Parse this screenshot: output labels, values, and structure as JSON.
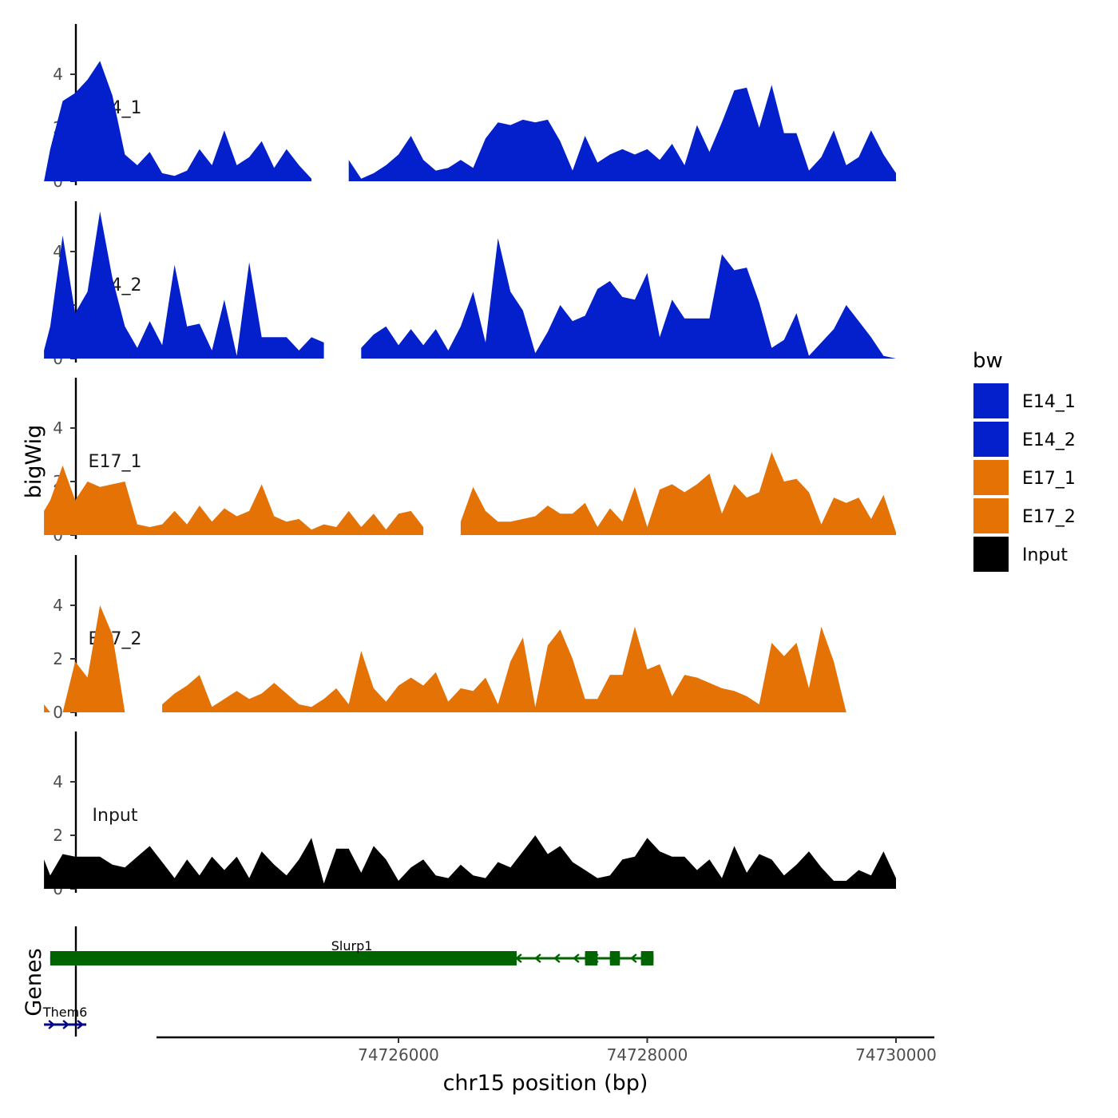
{
  "chart_data": {
    "type": "area",
    "title": "",
    "xlabel": "chr15 position (bp)",
    "ylabel": "bigWig",
    "genes_label": "Genes",
    "xlim": [
      74722800,
      74730300
    ],
    "ylim": [
      0,
      5.8
    ],
    "x_ticks": [
      74726000,
      74728000,
      74730000
    ],
    "x_tick_labels": [
      "74726000",
      "74728000",
      "74730000"
    ],
    "y_ticks": [
      0,
      2,
      4
    ],
    "y_tick_labels": [
      "0",
      "2",
      "4"
    ],
    "colors": {
      "E14": "#0320CC",
      "E17": "#E57205",
      "Input": "#000000",
      "gene_minus": "#006400",
      "gene_plus": "#00008B"
    },
    "legend": {
      "title": "bw",
      "position": "right",
      "entries": [
        {
          "label": "E14_1",
          "color": "#0320CC"
        },
        {
          "label": "E14_2",
          "color": "#0320CC"
        },
        {
          "label": "E17_1",
          "color": "#E57205"
        },
        {
          "label": "E17_2",
          "color": "#E57205"
        },
        {
          "label": "Input",
          "color": "#000000"
        }
      ]
    },
    "series": [
      {
        "name": "E14_1",
        "color": "#0320CC",
        "x": [
          74723150,
          74723200,
          74723300,
          74723400,
          74723500,
          74723600,
          74723700,
          74723800,
          74723900,
          74724000,
          74724100,
          74724200,
          74724300,
          74724400,
          74724500,
          74724600,
          74724700,
          74724800,
          74724900,
          74725000,
          74725100,
          74725200,
          74725300,
          74725400,
          74725500,
          74725600,
          74725700,
          74725800,
          74725900,
          74726000,
          74726100,
          74726200,
          74726300,
          74726400,
          74726500,
          74726600,
          74726700,
          74726800,
          74726900,
          74727000,
          74727100,
          74727200,
          74727300,
          74727400,
          74727500,
          74727600,
          74727700,
          74727800,
          74727900,
          74728000,
          74728100,
          74728200,
          74728300,
          74728400,
          74728500,
          74728600,
          74728700,
          74728800,
          74728900,
          74729000,
          74729100,
          74729200,
          74729300,
          74729400,
          74729500,
          74729600,
          74729700,
          74729800,
          74729900,
          74730000
        ],
        "values": [
          0,
          1.2,
          3.0,
          3.3,
          3.8,
          4.5,
          3.2,
          1.0,
          0.6,
          1.1,
          0.3,
          0.2,
          0.4,
          1.2,
          0.6,
          1.9,
          0.6,
          0.9,
          1.5,
          0.5,
          1.2,
          0.6,
          0.1,
          null,
          null,
          0.8,
          0.1,
          0.3,
          0.6,
          1.0,
          1.7,
          0.8,
          0.4,
          0.5,
          0.8,
          0.5,
          1.6,
          2.2,
          2.1,
          2.3,
          2.2,
          2.3,
          1.5,
          0.4,
          1.7,
          0.7,
          1.0,
          1.2,
          1.0,
          1.2,
          0.8,
          1.4,
          0.6,
          2.1,
          1.1,
          2.2,
          3.4,
          3.5,
          2.0,
          3.6,
          1.8,
          1.8,
          0.4,
          0.9,
          1.9,
          0.6,
          0.9,
          1.9,
          1.0,
          0.3
        ]
      },
      {
        "name": "E14_2",
        "color": "#0320CC",
        "x": [
          74723150,
          74723200,
          74723300,
          74723400,
          74723500,
          74723600,
          74723700,
          74723800,
          74723900,
          74724000,
          74724100,
          74724200,
          74724300,
          74724400,
          74724500,
          74724600,
          74724700,
          74724800,
          74724900,
          74725000,
          74725100,
          74725200,
          74725300,
          74725400,
          74725500,
          74725600,
          74725700,
          74725800,
          74725900,
          74726000,
          74726100,
          74726200,
          74726300,
          74726400,
          74726500,
          74726600,
          74726700,
          74726800,
          74726900,
          74727000,
          74727100,
          74727200,
          74727300,
          74727400,
          74727500,
          74727600,
          74727700,
          74727800,
          74727900,
          74728000,
          74728100,
          74728200,
          74728300,
          74728400,
          74728500,
          74728600,
          74728700,
          74728800,
          74728900,
          74729000,
          74729100,
          74729200,
          74729300,
          74729400,
          74729500,
          74729600,
          74729700,
          74729800,
          74729900,
          74730000
        ],
        "values": [
          0.3,
          1.2,
          4.6,
          1.7,
          2.5,
          5.5,
          3.0,
          1.2,
          0.4,
          1.4,
          0.5,
          3.5,
          1.2,
          1.3,
          0.3,
          2.2,
          0.1,
          3.6,
          0.8,
          0.8,
          0.8,
          0.3,
          0.8,
          0.6,
          null,
          null,
          0.4,
          0.9,
          1.2,
          0.5,
          1.1,
          0.5,
          1.1,
          0.3,
          1.2,
          2.5,
          0.6,
          4.5,
          2.5,
          1.8,
          0.2,
          1.0,
          2.0,
          1.4,
          1.6,
          2.6,
          2.9,
          2.3,
          2.2,
          3.2,
          0.8,
          2.2,
          1.5,
          1.5,
          1.5,
          3.9,
          3.3,
          3.4,
          2.1,
          0.4,
          0.7,
          1.7,
          0.1,
          0.6,
          1.1,
          2.0,
          1.4,
          0.8,
          0.1,
          0.0
        ]
      },
      {
        "name": "E17_1",
        "color": "#E57205",
        "x": [
          74723150,
          74723200,
          74723300,
          74723400,
          74723500,
          74723600,
          74723700,
          74723800,
          74723900,
          74724000,
          74724100,
          74724200,
          74724300,
          74724400,
          74724500,
          74724600,
          74724700,
          74724800,
          74724900,
          74725000,
          74725100,
          74725200,
          74725300,
          74725400,
          74725500,
          74725600,
          74725700,
          74725800,
          74725900,
          74726000,
          74726100,
          74726200,
          74726300,
          74726400,
          74726500,
          74726600,
          74726700,
          74726800,
          74726900,
          74727000,
          74727100,
          74727200,
          74727300,
          74727400,
          74727500,
          74727600,
          74727700,
          74727800,
          74727900,
          74728000,
          74728100,
          74728200,
          74728300,
          74728400,
          74728500,
          74728600,
          74728700,
          74728800,
          74728900,
          74729000,
          74729100,
          74729200,
          74729300,
          74729400,
          74729500,
          74729600,
          74729700,
          74729800,
          74729900,
          74730000
        ],
        "values": [
          0.9,
          1.3,
          2.6,
          1.3,
          2.0,
          1.8,
          1.9,
          2.0,
          0.4,
          0.3,
          0.4,
          0.9,
          0.4,
          1.1,
          0.5,
          1.0,
          0.7,
          0.9,
          1.9,
          0.7,
          0.5,
          0.6,
          0.2,
          0.4,
          0.3,
          0.9,
          0.3,
          0.8,
          0.2,
          0.8,
          0.9,
          0.3,
          null,
          null,
          0.5,
          1.8,
          0.9,
          0.5,
          0.5,
          0.6,
          0.7,
          1.1,
          0.8,
          0.8,
          1.2,
          0.3,
          1.0,
          0.5,
          1.8,
          0.3,
          1.7,
          1.9,
          1.6,
          1.9,
          2.3,
          0.8,
          1.9,
          1.4,
          1.6,
          3.1,
          2.0,
          2.1,
          1.6,
          0.4,
          1.4,
          1.2,
          1.4,
          0.6,
          1.5,
          0.1
        ]
      },
      {
        "name": "E17_2",
        "color": "#E57205",
        "x": [
          74723150,
          74723200,
          74723300,
          74723400,
          74723500,
          74723600,
          74723700,
          74723800,
          74723900,
          74724000,
          74724100,
          74724200,
          74724300,
          74724400,
          74724500,
          74724600,
          74724700,
          74724800,
          74724900,
          74725000,
          74725100,
          74725200,
          74725300,
          74725400,
          74725500,
          74725600,
          74725700,
          74725800,
          74725900,
          74726000,
          74726100,
          74726200,
          74726300,
          74726400,
          74726500,
          74726600,
          74726700,
          74726800,
          74726900,
          74727000,
          74727100,
          74727200,
          74727300,
          74727400,
          74727500,
          74727600,
          74727700,
          74727800,
          74727900,
          74728000,
          74728100,
          74728200,
          74728300,
          74728400,
          74728500,
          74728600,
          74728700,
          74728800,
          74728900,
          74729000,
          74729100,
          74729200,
          74729300,
          74729400,
          74729500,
          74729600,
          74729700,
          74729800,
          74729900,
          74730000
        ],
        "values": [
          0.3,
          0.0,
          0.0,
          1.9,
          1.3,
          4.0,
          2.9,
          0.0,
          null,
          null,
          0.3,
          0.7,
          1.0,
          1.4,
          0.2,
          0.5,
          0.8,
          0.5,
          0.7,
          1.1,
          0.7,
          0.3,
          0.2,
          0.5,
          0.9,
          0.3,
          2.3,
          0.9,
          0.4,
          1.0,
          1.3,
          1.0,
          1.5,
          0.4,
          0.9,
          0.8,
          1.3,
          0.3,
          1.9,
          2.8,
          0.2,
          2.5,
          3.1,
          2.0,
          0.5,
          0.5,
          1.4,
          1.4,
          3.2,
          1.6,
          1.8,
          0.6,
          1.4,
          1.3,
          1.1,
          0.9,
          0.8,
          0.6,
          0.3,
          2.6,
          2.1,
          2.6,
          0.9,
          3.2,
          1.9,
          0.0,
          0.0,
          0.0,
          0.0,
          0.0
        ]
      },
      {
        "name": "Input",
        "color": "#000000",
        "x": [
          74723150,
          74723200,
          74723300,
          74723400,
          74723500,
          74723600,
          74723700,
          74723800,
          74723900,
          74724000,
          74724100,
          74724200,
          74724300,
          74724400,
          74724500,
          74724600,
          74724700,
          74724800,
          74724900,
          74725000,
          74725100,
          74725200,
          74725300,
          74725400,
          74725500,
          74725600,
          74725700,
          74725800,
          74725900,
          74726000,
          74726100,
          74726200,
          74726300,
          74726400,
          74726500,
          74726600,
          74726700,
          74726800,
          74726900,
          74727000,
          74727100,
          74727200,
          74727300,
          74727400,
          74727500,
          74727600,
          74727700,
          74727800,
          74727900,
          74728000,
          74728100,
          74728200,
          74728300,
          74728400,
          74728500,
          74728600,
          74728700,
          74728800,
          74728900,
          74729000,
          74729100,
          74729200,
          74729300,
          74729400,
          74729500,
          74729600,
          74729700,
          74729800,
          74729900,
          74730000
        ],
        "values": [
          1.1,
          0.5,
          1.3,
          1.2,
          1.2,
          1.2,
          0.9,
          0.8,
          1.2,
          1.6,
          1.0,
          0.4,
          1.1,
          0.5,
          1.2,
          0.7,
          1.2,
          0.4,
          1.4,
          0.9,
          0.5,
          1.1,
          1.9,
          0.2,
          1.5,
          1.5,
          0.6,
          1.6,
          1.1,
          0.3,
          0.8,
          1.1,
          0.5,
          0.4,
          0.9,
          0.5,
          0.4,
          1.0,
          0.8,
          1.4,
          2.0,
          1.3,
          1.6,
          1.0,
          0.7,
          0.4,
          0.5,
          1.1,
          1.2,
          1.9,
          1.4,
          1.2,
          1.2,
          0.7,
          1.1,
          0.4,
          1.6,
          0.6,
          1.3,
          1.1,
          0.5,
          0.9,
          1.4,
          0.8,
          0.3,
          0.3,
          0.7,
          0.5,
          1.4,
          0.4
        ]
      }
    ],
    "genes": [
      {
        "name": "Slurp1",
        "strand": "-",
        "row": 1,
        "color": "#006400",
        "start": 74723200,
        "end": 74728050,
        "exons": [
          [
            74723200,
            74726700
          ],
          [
            74726700,
            74726950
          ],
          [
            74727500,
            74727600
          ],
          [
            74727700,
            74727780
          ],
          [
            74727950,
            74728050
          ]
        ],
        "coding_exons": [
          [
            74723200,
            74726950
          ],
          [
            74727500,
            74727600
          ],
          [
            74727700,
            74727780
          ],
          [
            74727950,
            74728050
          ]
        ]
      },
      {
        "name": "Them6",
        "strand": "+",
        "row": 2,
        "color": "#00008B",
        "start": 74723150,
        "end": 74723490,
        "exons": [],
        "coding_exons": []
      }
    ]
  }
}
